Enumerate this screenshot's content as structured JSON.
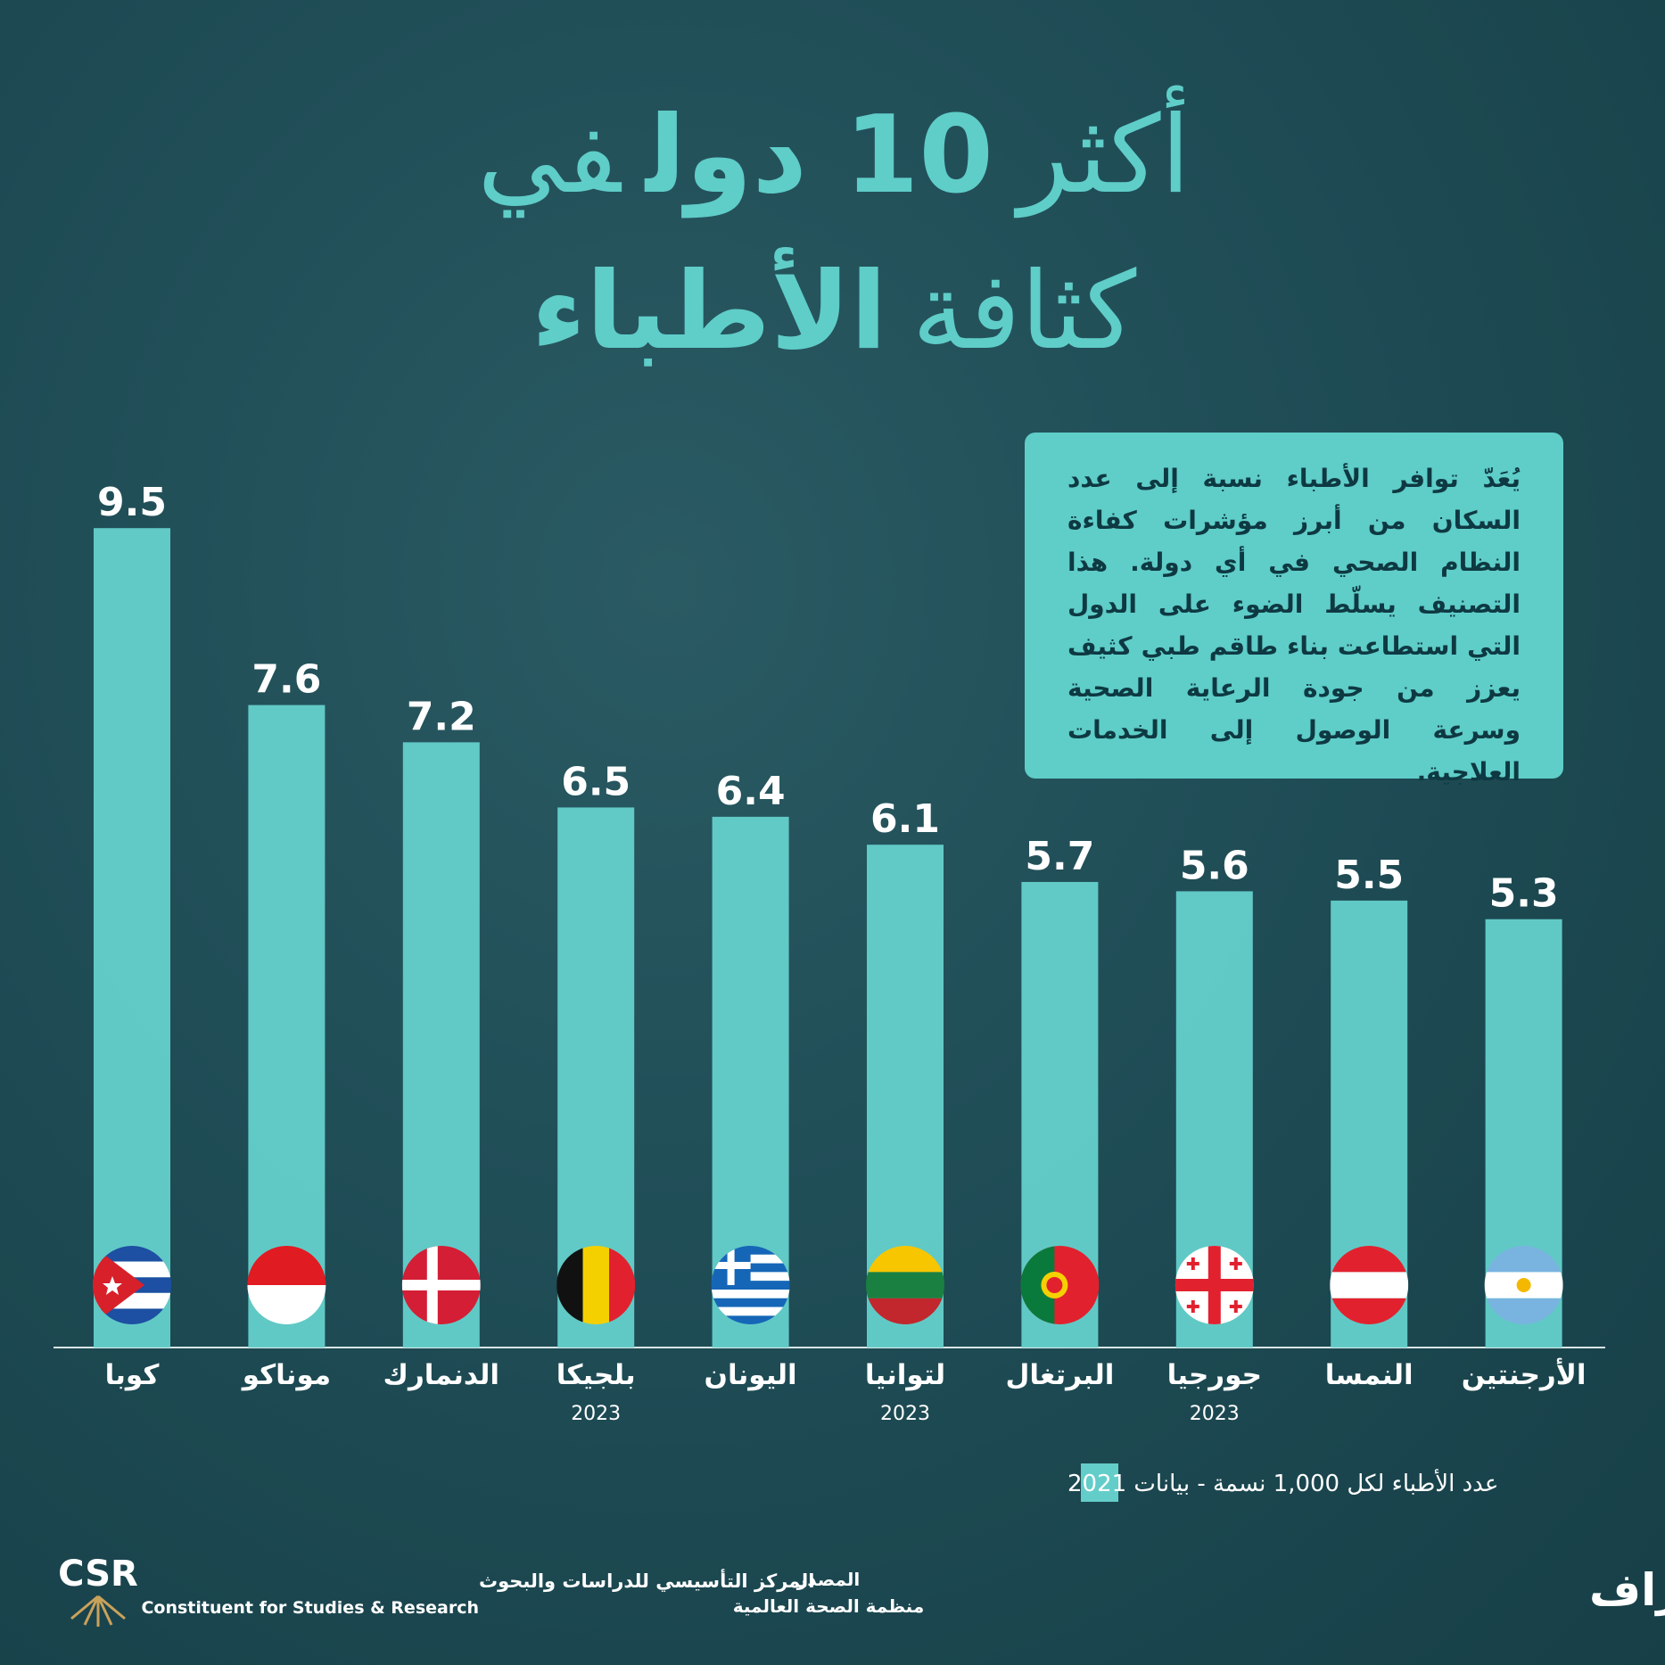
{
  "chart_data": {
    "type": "bar",
    "title": {
      "line1": [
        "أكثر",
        "10 دول",
        "في"
      ],
      "line2": [
        "كثافة",
        "الأطباء"
      ]
    },
    "description": "يُعَدّ توافر الأطباء نسبة إلى عدد السكان من أبرز مؤشرات كفاءة النظام الصحي في أي دولة. هذا التصنيف يسلّط الضوء على الدول التي استطاعت بناء طاقم طبي كثيف يعزز من جودة الرعاية الصحية وسرعة الوصول إلى الخدمات العلاجية.",
    "categories": [
      "كوبا",
      "موناكو",
      "الدنمارك",
      "بلجيكا",
      "اليونان",
      "لتوانيا",
      "البرتغال",
      "جورجيا",
      "النمسا",
      "الأرجنتين"
    ],
    "category_notes": [
      null,
      null,
      null,
      "2023",
      null,
      "2023",
      null,
      "2023",
      null,
      null
    ],
    "series": [
      {
        "name": "عدد الأطباء لكل 1,000 نسمة - بيانات 2021",
        "color": "#63cdc9",
        "values": [
          9.5,
          7.6,
          7.2,
          6.5,
          6.4,
          6.1,
          5.7,
          5.6,
          5.5,
          5.3
        ]
      }
    ],
    "ylim": [
      0.7,
      10
    ],
    "footer": {
      "org_ar": "المركز التأسيسي للدراسات والبحوث",
      "org_en": "Constituent for Studies & Research",
      "logo": "CSR",
      "source_label": "المصدر",
      "source": "منظمة الصحة العالمية",
      "hashtag": "#أسس_إنفوجراف"
    }
  }
}
